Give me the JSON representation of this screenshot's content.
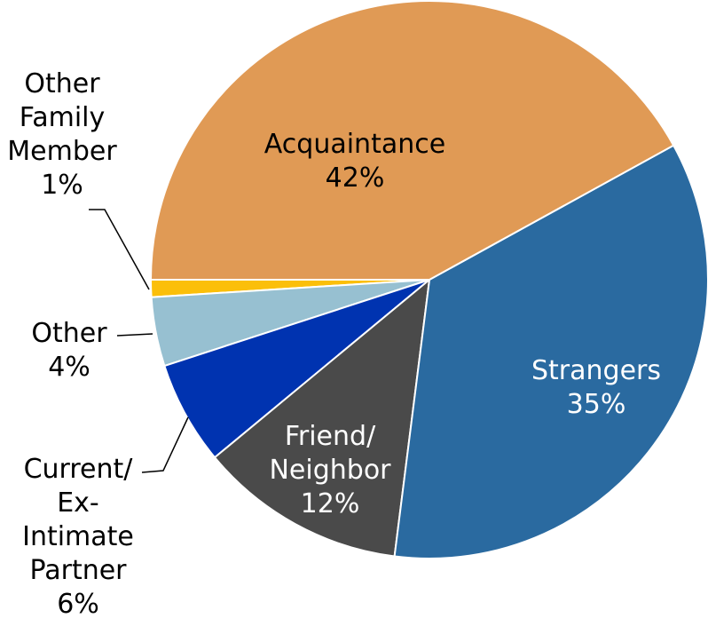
{
  "chart_data": {
    "type": "pie",
    "categories": [
      "Acquaintance",
      "Strangers",
      "Friend/ Neighbor",
      "Current/ Ex-Intimate Partner",
      "Other",
      "Other Family Member"
    ],
    "values": [
      42,
      35,
      12,
      6,
      4,
      1
    ],
    "value_labels": [
      "42%",
      "35%",
      "12%",
      "6%",
      "4%",
      "1%"
    ],
    "colors": [
      "#e09a55",
      "#2a6aa0",
      "#4a4a4a",
      "#0033b0",
      "#97c0d1",
      "#fbbf0a"
    ]
  }
}
